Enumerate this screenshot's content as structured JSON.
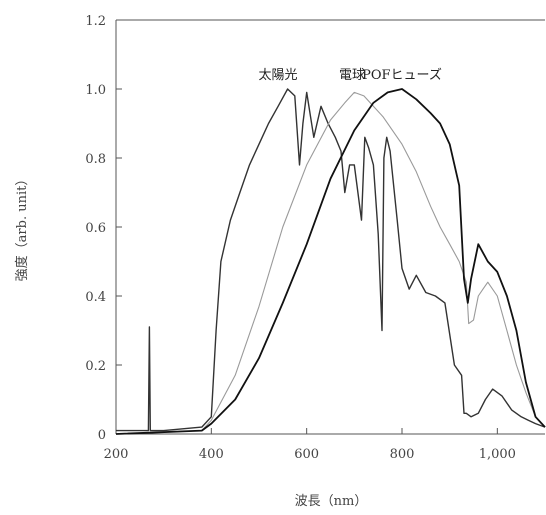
{
  "chart_data": {
    "type": "line",
    "title": "",
    "xlabel": "波長（nm）",
    "ylabel": "強度（arb. unit）",
    "xlim": [
      200,
      1100
    ],
    "ylim": [
      0,
      1.2
    ],
    "x_ticks": [
      200,
      400,
      600,
      800,
      1000
    ],
    "x_tick_labels": [
      "200",
      "400",
      "600",
      "800",
      "1,000"
    ],
    "y_ticks": [
      0,
      0.2,
      0.4,
      0.6,
      0.8,
      1.0,
      1.2
    ],
    "y_tick_labels": [
      "0",
      "0.2",
      "0.4",
      "0.6",
      "0.8",
      "1.0",
      "1.2"
    ],
    "grid": false,
    "series": [
      {
        "name": "太陽光",
        "color": "#333333",
        "x": [
          200,
          260,
          268,
          270,
          272,
          300,
          380,
          400,
          410,
          420,
          440,
          460,
          480,
          500,
          520,
          540,
          560,
          575,
          585,
          592,
          600,
          615,
          630,
          645,
          660,
          672,
          680,
          690,
          700,
          715,
          722,
          730,
          740,
          750,
          758,
          762,
          768,
          775,
          790,
          800,
          815,
          830,
          850,
          870,
          890,
          910,
          925,
          930,
          935,
          945,
          960,
          975,
          990,
          1010,
          1030,
          1050,
          1065,
          1080,
          1100
        ],
        "values": [
          0.01,
          0.01,
          0.01,
          0.31,
          0.01,
          0.01,
          0.02,
          0.05,
          0.3,
          0.5,
          0.62,
          0.7,
          0.78,
          0.84,
          0.9,
          0.95,
          1.0,
          0.98,
          0.78,
          0.9,
          0.99,
          0.86,
          0.95,
          0.9,
          0.86,
          0.82,
          0.7,
          0.78,
          0.78,
          0.62,
          0.86,
          0.83,
          0.78,
          0.58,
          0.3,
          0.8,
          0.86,
          0.82,
          0.62,
          0.48,
          0.42,
          0.46,
          0.41,
          0.4,
          0.38,
          0.2,
          0.17,
          0.06,
          0.06,
          0.05,
          0.06,
          0.1,
          0.13,
          0.11,
          0.07,
          0.05,
          0.04,
          0.03,
          0.02
        ]
      },
      {
        "name": "電球",
        "color": "#9a9a9a",
        "x": [
          200,
          380,
          400,
          450,
          500,
          550,
          600,
          650,
          680,
          700,
          720,
          740,
          760,
          780,
          800,
          830,
          860,
          880,
          900,
          920,
          935,
          940,
          950,
          960,
          970,
          980,
          1000,
          1020,
          1040,
          1060,
          1080,
          1100
        ],
        "values": [
          0.0,
          0.01,
          0.04,
          0.17,
          0.37,
          0.6,
          0.78,
          0.91,
          0.96,
          0.99,
          0.98,
          0.95,
          0.92,
          0.88,
          0.84,
          0.76,
          0.66,
          0.6,
          0.55,
          0.5,
          0.44,
          0.32,
          0.33,
          0.4,
          0.42,
          0.44,
          0.4,
          0.3,
          0.2,
          0.12,
          0.05,
          0.02
        ]
      },
      {
        "name": "POFヒューズ",
        "color": "#111111",
        "x": [
          200,
          380,
          400,
          450,
          500,
          550,
          600,
          650,
          700,
          740,
          770,
          800,
          830,
          860,
          880,
          900,
          920,
          930,
          938,
          945,
          960,
          980,
          1000,
          1020,
          1040,
          1060,
          1080,
          1100
        ],
        "values": [
          0.0,
          0.01,
          0.03,
          0.1,
          0.22,
          0.38,
          0.55,
          0.74,
          0.88,
          0.96,
          0.99,
          1.0,
          0.97,
          0.93,
          0.9,
          0.84,
          0.72,
          0.45,
          0.38,
          0.45,
          0.55,
          0.5,
          0.47,
          0.4,
          0.3,
          0.15,
          0.05,
          0.02
        ]
      }
    ],
    "series_labels_position": "top"
  }
}
